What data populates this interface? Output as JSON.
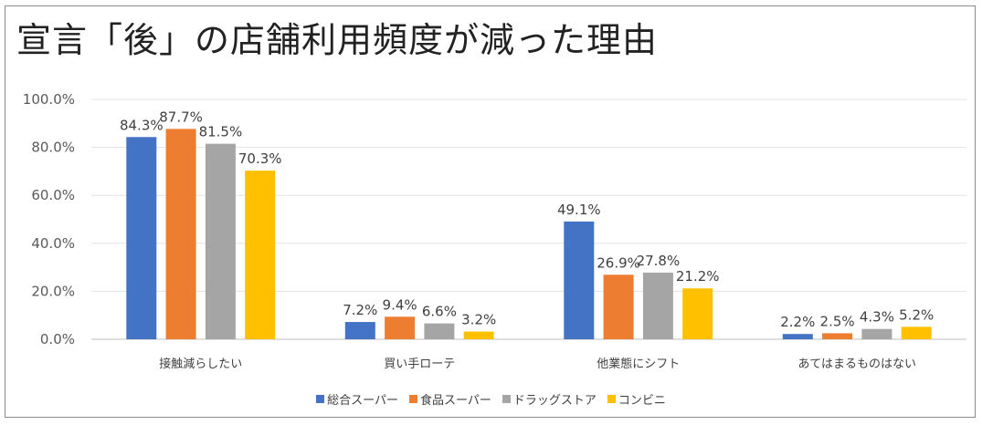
{
  "chart_data": {
    "type": "bar",
    "title": "宣言「後」の店舗利用頻度が減った理由",
    "categories": [
      "接触減らしたい",
      "買い手ローテ",
      "他業態にシフト",
      "あてはまるものはない"
    ],
    "series": [
      {
        "name": "総合スーパー",
        "color": "#4472C4",
        "values": [
          84.3,
          7.2,
          49.1,
          2.2
        ],
        "labels": [
          "84.3%",
          "7.2%",
          "49.1%",
          "2.2%"
        ]
      },
      {
        "name": "食品スーパー",
        "color": "#ED7D31",
        "values": [
          87.7,
          9.4,
          26.9,
          2.5
        ],
        "labels": [
          "87.7%",
          "9.4%",
          "26.9%",
          "2.5%"
        ]
      },
      {
        "name": "ドラッグストア",
        "color": "#A5A5A5",
        "values": [
          81.5,
          6.6,
          27.8,
          4.3
        ],
        "labels": [
          "81.5%",
          "6.6%",
          "27.8%",
          "4.3%"
        ]
      },
      {
        "name": "コンビニ",
        "color": "#FFC000",
        "values": [
          70.3,
          3.2,
          21.2,
          5.2
        ],
        "labels": [
          "70.3%",
          "3.2%",
          "21.2%",
          "5.2%"
        ]
      }
    ],
    "yticks": [
      "0.0%",
      "20.0%",
      "40.0%",
      "60.0%",
      "80.0%",
      "100.0%"
    ],
    "ylim": [
      0,
      100
    ],
    "grid": true,
    "legend_position": "bottom"
  }
}
